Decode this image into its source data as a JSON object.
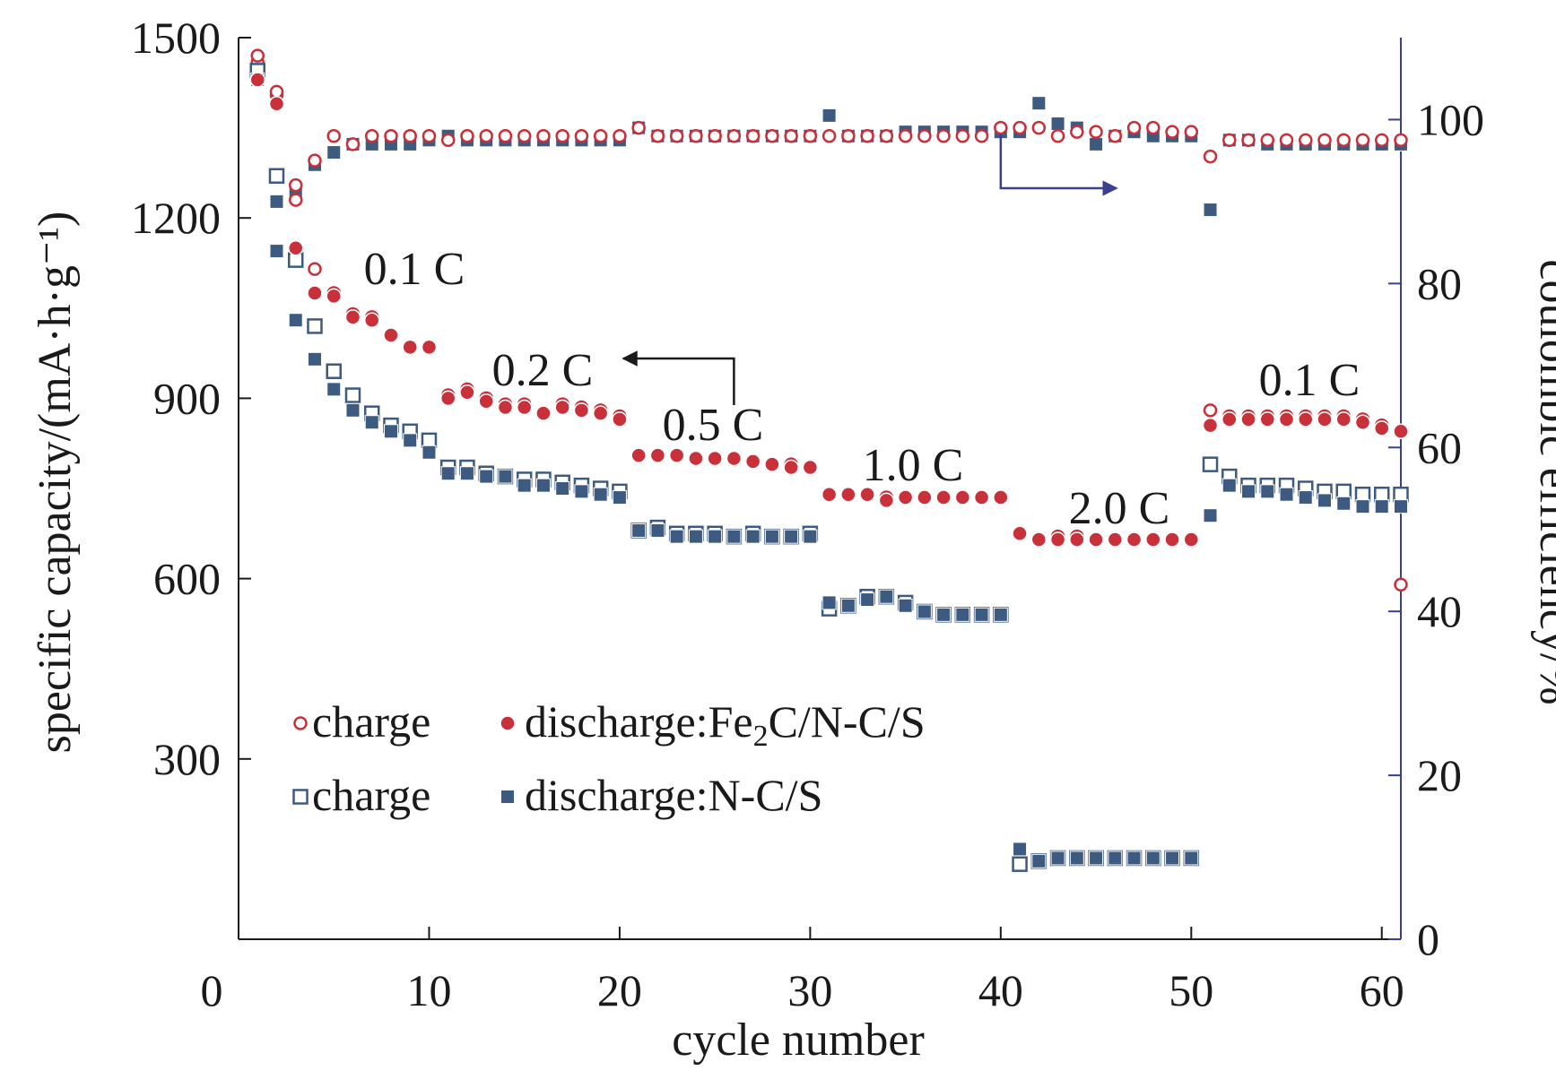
{
  "colors": {
    "axis_left": "#1a1a1a",
    "axis_right": "#3a3f8f",
    "red": "#c8303a",
    "blue": "#3d5a80"
  },
  "chart_data": {
    "type": "scatter",
    "xlabel": "cycle number",
    "ylabel_left": "specific capacity/(mA·h·g⁻¹)",
    "ylabel_right": "coulombic efficiency/%",
    "xlim": [
      0,
      61
    ],
    "ylim_left": [
      0,
      1500
    ],
    "ylim_right": [
      0,
      110
    ],
    "x_ticks": [
      0,
      10,
      20,
      30,
      40,
      50,
      60
    ],
    "y_left_ticks": [
      300,
      600,
      900,
      1200,
      1500
    ],
    "y_left_tick_labels": [
      "300",
      "600",
      "900",
      "1200",
      "1500"
    ],
    "y_right_ticks": [
      0,
      20,
      40,
      60,
      80,
      100
    ],
    "y_right_tick_labels": [
      "0",
      "20",
      "40",
      "60",
      "80",
      "100"
    ],
    "origin_label": "0",
    "legend": {
      "placement": "lower-left",
      "entries": [
        {
          "marker": "open-circle",
          "color": "red",
          "text": "charge"
        },
        {
          "marker": "filled-circle",
          "color": "red",
          "text": "discharge:Fe",
          "sub": "2",
          "text_after": "C/N-C/S"
        },
        {
          "marker": "open-square",
          "color": "blue",
          "text": "charge"
        },
        {
          "marker": "filled-square",
          "color": "blue",
          "text": "discharge:N-C/S"
        }
      ]
    },
    "rate_labels": [
      "0.1 C",
      "0.2 C",
      "0.5 C",
      "1.0 C",
      "2.0 C",
      "0.1 C"
    ],
    "annotations": [
      {
        "points_to": "left axis (capacity)",
        "from_cycle": 26
      },
      {
        "points_to": "right axis (efficiency)",
        "from_cycle": 40
      }
    ],
    "cycles": [
      1,
      2,
      3,
      4,
      5,
      6,
      7,
      8,
      9,
      10,
      11,
      12,
      13,
      14,
      15,
      16,
      17,
      18,
      19,
      20,
      21,
      22,
      23,
      24,
      25,
      26,
      27,
      28,
      29,
      30,
      31,
      32,
      33,
      34,
      35,
      36,
      37,
      38,
      39,
      40,
      41,
      42,
      43,
      44,
      45,
      46,
      47,
      48,
      49,
      50,
      51,
      52,
      53,
      54,
      55,
      56,
      57,
      58,
      59,
      60,
      61
    ],
    "series": [
      {
        "name": "charge (Fe2C/N-C/S)",
        "axis": "left",
        "marker": "open-circle",
        "color": "red",
        "values": [
          1470,
          1410,
          1230,
          1115,
          1075,
          1040,
          1035,
          1005,
          985,
          985,
          905,
          915,
          900,
          890,
          890,
          875,
          890,
          885,
          880,
          870,
          805,
          805,
          805,
          800,
          800,
          800,
          795,
          790,
          790,
          785,
          740,
          740,
          740,
          735,
          735,
          735,
          735,
          735,
          735,
          735,
          675,
          665,
          670,
          670,
          665,
          665,
          665,
          665,
          665,
          665,
          880,
          870,
          870,
          870,
          870,
          870,
          870,
          870,
          865,
          855,
          590
        ]
      },
      {
        "name": "discharge (Fe2C/N-C/S)",
        "axis": "left",
        "marker": "filled-circle",
        "color": "red",
        "values": [
          1430,
          1390,
          1150,
          1075,
          1070,
          1035,
          1030,
          1005,
          985,
          985,
          900,
          910,
          895,
          885,
          885,
          875,
          885,
          880,
          875,
          865,
          805,
          805,
          805,
          800,
          800,
          800,
          795,
          790,
          785,
          785,
          740,
          740,
          740,
          730,
          735,
          735,
          735,
          735,
          735,
          735,
          675,
          665,
          665,
          665,
          665,
          665,
          665,
          665,
          665,
          665,
          855,
          865,
          865,
          865,
          865,
          865,
          865,
          865,
          860,
          850,
          845
        ]
      },
      {
        "name": "charge (N-C/S)",
        "axis": "left",
        "marker": "open-square",
        "color": "blue",
        "values": [
          1445,
          1270,
          1130,
          1020,
          945,
          905,
          875,
          855,
          845,
          830,
          785,
          785,
          775,
          770,
          765,
          765,
          760,
          755,
          750,
          745,
          680,
          685,
          675,
          675,
          675,
          670,
          675,
          670,
          670,
          675,
          550,
          555,
          570,
          570,
          560,
          545,
          540,
          540,
          540,
          540,
          125,
          130,
          135,
          135,
          135,
          135,
          135,
          135,
          135,
          135,
          790,
          770,
          755,
          755,
          755,
          750,
          745,
          745,
          740,
          740,
          740
        ]
      },
      {
        "name": "discharge (N-C/S)",
        "axis": "left",
        "marker": "filled-square",
        "color": "blue",
        "values": [
          1430,
          1145,
          1030,
          965,
          915,
          880,
          860,
          845,
          830,
          810,
          775,
          775,
          770,
          770,
          755,
          755,
          750,
          745,
          740,
          735,
          680,
          680,
          670,
          670,
          670,
          670,
          670,
          670,
          670,
          670,
          560,
          555,
          565,
          570,
          555,
          545,
          540,
          540,
          540,
          540,
          150,
          130,
          135,
          135,
          135,
          135,
          135,
          135,
          135,
          135,
          705,
          755,
          745,
          745,
          740,
          735,
          730,
          725,
          720,
          720,
          720
        ]
      },
      {
        "name": "coulombic efficiency (Fe2C/N-C/S)",
        "axis": "right",
        "marker": "open-circle",
        "color": "red",
        "values": [
          107,
          103,
          92,
          95,
          98,
          97,
          98,
          98,
          98,
          98,
          97.5,
          98,
          98,
          98,
          98,
          98,
          98,
          98,
          98,
          98,
          99,
          98,
          98,
          98,
          98,
          98,
          98,
          98,
          98,
          98,
          98,
          98,
          98,
          98,
          98,
          98,
          98,
          98,
          98,
          99,
          99,
          99,
          98,
          98.5,
          98.5,
          98,
          99,
          99,
          98.5,
          98.5,
          95.5,
          97.5,
          97.5,
          97.5,
          97.5,
          97.5,
          97.5,
          97.5,
          97.5,
          97.5,
          97.5
        ]
      },
      {
        "name": "coulombic efficiency (N-C/S)",
        "axis": "right",
        "marker": "filled-square",
        "color": "blue",
        "values": [
          105,
          90,
          91,
          94.5,
          96,
          97,
          97,
          97,
          97,
          97.5,
          98,
          97.5,
          97.5,
          97.5,
          97.5,
          97.5,
          97.5,
          97.5,
          97.5,
          97.5,
          99,
          98,
          98,
          98,
          98,
          98,
          98,
          98,
          98,
          98,
          100.5,
          98,
          98,
          98,
          98.5,
          98.5,
          98.5,
          98.5,
          98.5,
          98.5,
          98.5,
          102,
          99.5,
          99,
          97,
          98,
          98.5,
          98,
          98,
          98,
          89,
          97.5,
          97.5,
          97,
          97,
          97,
          97,
          97,
          97,
          97,
          97
        ]
      }
    ]
  }
}
